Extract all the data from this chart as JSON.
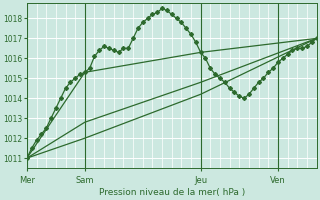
{
  "background_color": "#cce8e0",
  "grid_color": "#ffffff",
  "line_color": "#2d6a2d",
  "marker_color": "#2d6a2d",
  "title": "Pression niveau de la mer( hPa )",
  "ylim": [
    1010.5,
    1018.75
  ],
  "yticks": [
    1011,
    1012,
    1013,
    1014,
    1015,
    1016,
    1017,
    1018
  ],
  "day_labels": [
    "Mer",
    "Sam",
    "Jeu",
    "Ven"
  ],
  "day_positions": [
    0,
    12,
    36,
    52
  ],
  "xlim": [
    0,
    60
  ],
  "series1_x": [
    0,
    1,
    2,
    3,
    4,
    5,
    6,
    7,
    8,
    9,
    10,
    11,
    12,
    13,
    14,
    15,
    16,
    17,
    18,
    19,
    20,
    21,
    22,
    23,
    24,
    25,
    26,
    27,
    28,
    29,
    30,
    31,
    32,
    33,
    34,
    35,
    36,
    37,
    38,
    39,
    40,
    41,
    42,
    43,
    44,
    45,
    46,
    47,
    48,
    49,
    50,
    51,
    52,
    53,
    54,
    55,
    56,
    57,
    58,
    59,
    60
  ],
  "series1_y": [
    1011.0,
    1011.5,
    1011.9,
    1012.2,
    1012.5,
    1013.0,
    1013.5,
    1014.0,
    1014.5,
    1014.8,
    1015.0,
    1015.2,
    1015.3,
    1015.5,
    1016.1,
    1016.4,
    1016.6,
    1016.5,
    1016.4,
    1016.3,
    1016.5,
    1016.5,
    1017.0,
    1017.5,
    1017.8,
    1018.0,
    1018.2,
    1018.3,
    1018.5,
    1018.4,
    1018.2,
    1018.0,
    1017.8,
    1017.5,
    1017.2,
    1016.8,
    1016.3,
    1016.0,
    1015.5,
    1015.2,
    1015.0,
    1014.8,
    1014.5,
    1014.3,
    1014.1,
    1014.0,
    1014.2,
    1014.5,
    1014.8,
    1015.0,
    1015.3,
    1015.5,
    1015.8,
    1016.0,
    1016.2,
    1016.4,
    1016.5,
    1016.5,
    1016.6,
    1016.8,
    1017.0
  ],
  "series2_x": [
    0,
    12,
    36,
    60
  ],
  "series2_y": [
    1011.0,
    1015.3,
    1016.3,
    1017.0
  ],
  "series3_x": [
    0,
    12,
    36,
    60
  ],
  "series3_y": [
    1011.0,
    1012.8,
    1014.8,
    1017.0
  ],
  "series4_x": [
    0,
    12,
    36,
    60
  ],
  "series4_y": [
    1011.0,
    1012.0,
    1014.2,
    1017.0
  ],
  "minor_per_major": 5
}
